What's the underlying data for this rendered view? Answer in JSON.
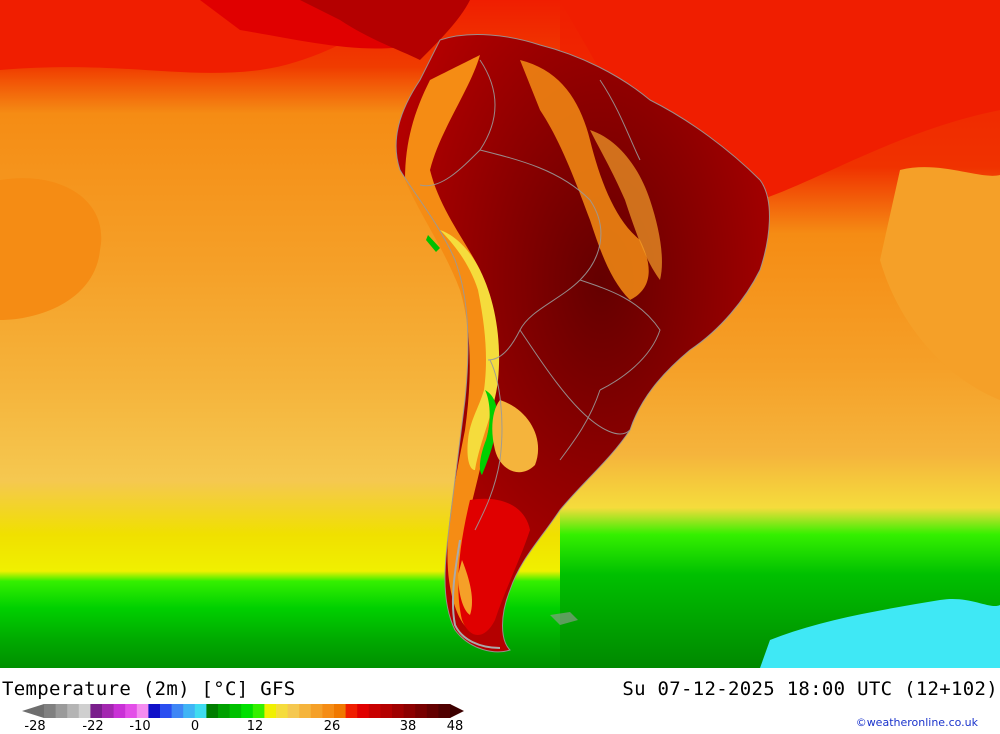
{
  "title": {
    "left": "Temperature (2m) [°C] GFS",
    "right": "Su 07-12-2025 18:00 UTC (12+102)"
  },
  "credit": "©weatheronline.co.uk",
  "legend": {
    "tick_labels": [
      "-28",
      "-22",
      "-10",
      "0",
      "12",
      "26",
      "38",
      "48"
    ],
    "colors": [
      "#808080",
      "#9a9a9a",
      "#b4b4b4",
      "#cfcfcf",
      "#7a1f8c",
      "#a327b0",
      "#c931d6",
      "#e34ee8",
      "#f58cf0",
      "#1010c8",
      "#2a4ef0",
      "#3f86f5",
      "#40b4f5",
      "#3fdcf0",
      "#007d00",
      "#00a000",
      "#00c000",
      "#00e000",
      "#35f000",
      "#f0f000",
      "#f5dc3c",
      "#f5c850",
      "#f5b43c",
      "#f5a028",
      "#f58c14",
      "#f07800",
      "#f01e00",
      "#e00000",
      "#c80000",
      "#b40000",
      "#a00000",
      "#8c0000",
      "#780000",
      "#640000",
      "#500000"
    ]
  },
  "map": {
    "background_colors": {
      "north_red": "#f01e00",
      "orange": "#f58c14",
      "light_orange": "#f5a028",
      "yellow_orange": "#f5b43c",
      "yellow": "#f0f000",
      "green": "#00c000",
      "dark_green": "#00a000",
      "cyan": "#3fdcf0",
      "land_hot": "#8c0000"
    }
  }
}
